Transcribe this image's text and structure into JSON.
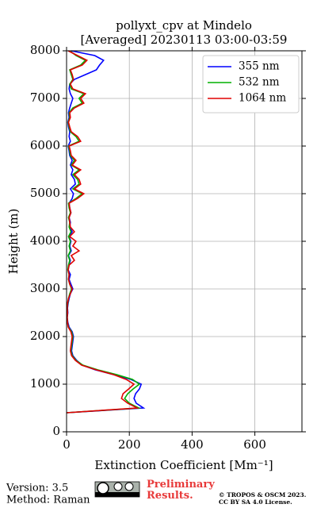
{
  "chart_data": {
    "type": "line",
    "title": "pollyxt_cpv at Mindelo",
    "subtitle": "[Averaged] 20230113 03:00-03:59",
    "x_label": "Extinction Coefficient [Mm⁻¹]",
    "y_label": "Height (m)",
    "xlim": [
      0,
      750
    ],
    "ylim": [
      0,
      8000
    ],
    "xticks": [
      0,
      200,
      400,
      600
    ],
    "yticks": [
      0,
      1000,
      2000,
      3000,
      4000,
      5000,
      6000,
      7000,
      8000
    ],
    "grid": true,
    "legend": "upper right",
    "y": [
      400,
      500,
      600,
      700,
      800,
      900,
      1000,
      1100,
      1200,
      1300,
      1400,
      1500,
      1600,
      1700,
      1800,
      1900,
      2000,
      2100,
      2200,
      2300,
      2400,
      2500,
      2600,
      2700,
      2800,
      2900,
      3000,
      3100,
      3200,
      3300,
      3400,
      3500,
      3600,
      3700,
      3800,
      3900,
      4000,
      4100,
      4200,
      4300,
      4400,
      4500,
      4600,
      4700,
      4800,
      4900,
      5000,
      5100,
      5200,
      5300,
      5400,
      5500,
      5600,
      5700,
      5800,
      5900,
      6000,
      6100,
      6200,
      6300,
      6400,
      6500,
      6600,
      6700,
      6800,
      6900,
      7000,
      7100,
      7200,
      7300,
      7400,
      7500,
      7600,
      7700,
      7800,
      7900,
      8000
    ],
    "series": [
      {
        "name": "355 nm",
        "color": "#0000ff",
        "values": [
          0,
          245,
          222,
          215,
          220,
          232,
          238,
          205,
          150,
          92,
          50,
          32,
          20,
          16,
          18,
          20,
          22,
          18,
          8,
          4,
          2,
          4,
          3,
          5,
          8,
          12,
          20,
          14,
          8,
          12,
          5,
          8,
          12,
          6,
          15,
          10,
          14,
          8,
          18,
          10,
          12,
          8,
          14,
          10,
          8,
          18,
          22,
          12,
          28,
          25,
          15,
          20,
          12,
          18,
          10,
          8,
          5,
          12,
          8,
          10,
          6,
          4,
          8,
          6,
          10,
          15,
          20,
          12,
          8,
          10,
          25,
          60,
          95,
          105,
          118,
          90,
          15
        ]
      },
      {
        "name": "532 nm",
        "color": "#00b000",
        "values": [
          0,
          230,
          200,
          185,
          195,
          212,
          232,
          210,
          160,
          100,
          52,
          30,
          18,
          14,
          16,
          18,
          20,
          16,
          6,
          3,
          2,
          3,
          2,
          4,
          6,
          10,
          16,
          10,
          6,
          8,
          4,
          6,
          10,
          5,
          12,
          8,
          12,
          6,
          14,
          8,
          10,
          6,
          12,
          8,
          6,
          30,
          50,
          20,
          40,
          35,
          20,
          40,
          15,
          25,
          12,
          10,
          6,
          40,
          30,
          12,
          8,
          5,
          10,
          8,
          20,
          50,
          40,
          55,
          15,
          10,
          20,
          15,
          10,
          45,
          60,
          30,
          10
        ]
      },
      {
        "name": "1064 nm",
        "color": "#e00000",
        "values": [
          0,
          225,
          195,
          175,
          180,
          198,
          215,
          190,
          150,
          95,
          48,
          28,
          16,
          12,
          14,
          16,
          18,
          14,
          5,
          3,
          2,
          3,
          2,
          3,
          6,
          12,
          18,
          10,
          6,
          8,
          5,
          8,
          25,
          15,
          40,
          20,
          30,
          10,
          25,
          12,
          10,
          8,
          14,
          10,
          8,
          35,
          55,
          25,
          45,
          40,
          25,
          45,
          18,
          30,
          15,
          12,
          8,
          45,
          35,
          15,
          10,
          6,
          12,
          10,
          25,
          55,
          45,
          60,
          20,
          12,
          22,
          18,
          12,
          50,
          65,
          35,
          5
        ]
      }
    ]
  },
  "footer": {
    "version": "Version: 3.5",
    "method": "Method: Raman",
    "notice": "Preliminary Results.",
    "copyright": "© TROPOS & OSCM 2023.",
    "license": "CC BY SA 4.0 License."
  }
}
